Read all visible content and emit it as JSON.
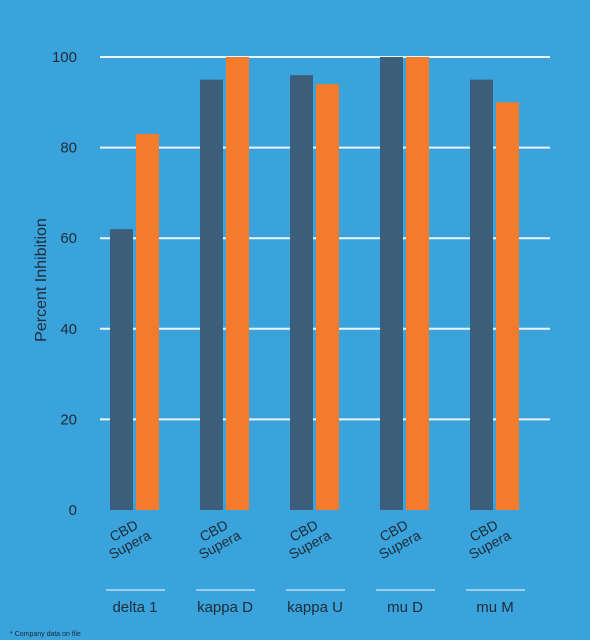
{
  "chart_data": {
    "type": "bar",
    "ylabel": "Percent Inhibition",
    "ylim": [
      0,
      100
    ],
    "yticks": [
      0,
      20,
      40,
      60,
      80,
      100
    ],
    "grid": true,
    "series": [
      {
        "name": "CBD",
        "color": "#3d5e7a"
      },
      {
        "name": "Supera",
        "color": "#f47b2b"
      }
    ],
    "groups": [
      {
        "label": "delta 1",
        "values": [
          62,
          83
        ]
      },
      {
        "label": "kappa  D",
        "values": [
          95,
          100
        ]
      },
      {
        "label": "kappa  U",
        "values": [
          96,
          94
        ]
      },
      {
        "label": "mu  D",
        "values": [
          100,
          100
        ]
      },
      {
        "label": "mu  M",
        "values": [
          95,
          90
        ]
      }
    ]
  },
  "footnote": "* Company data on file"
}
